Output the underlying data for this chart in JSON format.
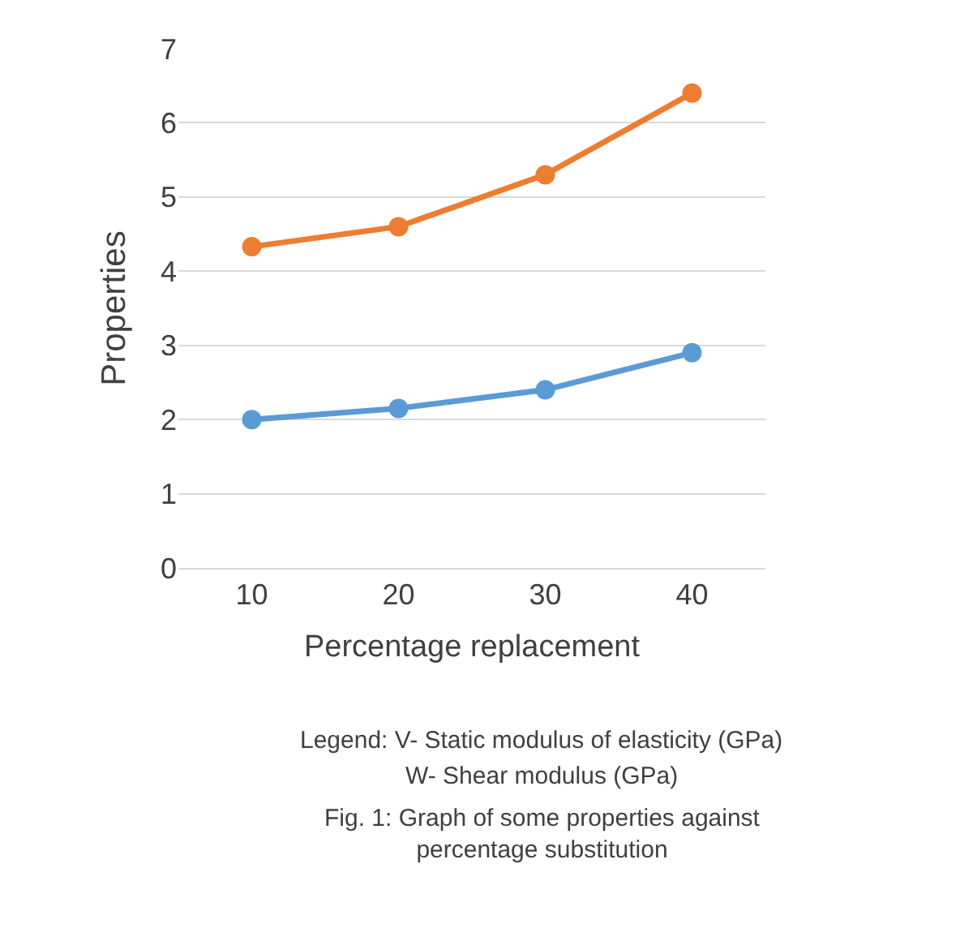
{
  "chart_data": {
    "type": "line",
    "xlabel": "Percentage replacement",
    "ylabel": "Properties",
    "categories": [
      "10",
      "20",
      "30",
      "40"
    ],
    "series": [
      {
        "color": "#5b9bd5",
        "values": [
          2.0,
          2.15,
          2.4,
          2.9
        ]
      },
      {
        "color": "#ed7d31",
        "values": [
          4.33,
          4.6,
          5.3,
          6.4
        ]
      }
    ],
    "ylim": [
      0,
      7
    ],
    "yticks": [
      0,
      1,
      2,
      3,
      4,
      5,
      6,
      7
    ],
    "grid": "y",
    "marker": "circle",
    "line_style": "solid",
    "annotations": [
      "Legend: V- Static modulus of elasticity (GPa)",
      "W- Shear modulus (GPa)",
      "Fig. 1: Graph of some properties against percentage substitution"
    ]
  }
}
